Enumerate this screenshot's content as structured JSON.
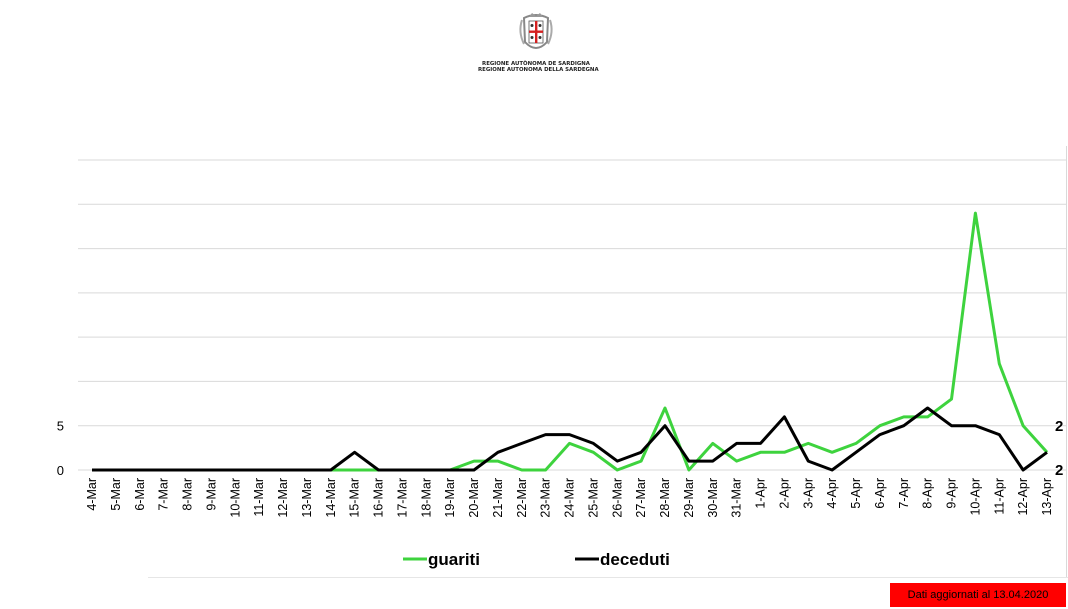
{
  "header": {
    "logo_icon": "sardinia-coat-of-arms",
    "org_line_1": "REGIONE AUTÒNOMA DE SARDIGNA",
    "org_line_2": "REGIONE AUTONOMA DELLA SARDEGNA"
  },
  "chart_data": {
    "type": "line",
    "title": "",
    "xlabel": "",
    "ylabel": "",
    "categories": [
      "4-Mar",
      "5-Mar",
      "6-Mar",
      "7-Mar",
      "8-Mar",
      "9-Mar",
      "10-Mar",
      "11-Mar",
      "12-Mar",
      "13-Mar",
      "14-Mar",
      "15-Mar",
      "16-Mar",
      "17-Mar",
      "18-Mar",
      "19-Mar",
      "20-Mar",
      "21-Mar",
      "22-Mar",
      "23-Mar",
      "24-Mar",
      "25-Mar",
      "26-Mar",
      "27-Mar",
      "28-Mar",
      "29-Mar",
      "30-Mar",
      "31-Mar",
      "1-Apr",
      "2-Apr",
      "3-Apr",
      "4-Apr",
      "5-Apr",
      "6-Apr",
      "7-Apr",
      "8-Apr",
      "9-Apr",
      "10-Apr",
      "11-Apr",
      "12-Apr",
      "13-Apr"
    ],
    "series": [
      {
        "name": "guariti",
        "color": "#3ed33e",
        "values": [
          0,
          0,
          0,
          0,
          0,
          0,
          0,
          0,
          0,
          0,
          0,
          0,
          0,
          0,
          0,
          0,
          1,
          1,
          0,
          0,
          3,
          2,
          0,
          1,
          7,
          0,
          3,
          1,
          2,
          2,
          3,
          2,
          3,
          5,
          6,
          6,
          8,
          29,
          12,
          5,
          2
        ]
      },
      {
        "name": "deceduti",
        "color": "#000000",
        "values": [
          0,
          0,
          0,
          0,
          0,
          0,
          0,
          0,
          0,
          0,
          0,
          2,
          0,
          0,
          0,
          0,
          0,
          2,
          3,
          4,
          4,
          3,
          1,
          2,
          5,
          1,
          1,
          3,
          3,
          6,
          1,
          0,
          2,
          4,
          5,
          7,
          5,
          5,
          4,
          0,
          2
        ]
      }
    ],
    "ylim": [
      0,
      35
    ],
    "ytick_labels": [
      "0",
      "5"
    ],
    "grid": true,
    "end_labels": [
      "2",
      "2"
    ],
    "legend": {
      "position": "bottom",
      "items": [
        "guariti",
        "deceduti"
      ]
    }
  },
  "footer": {
    "update_note": "Dati aggiornati al 13.04.2020",
    "badge_color": "#ff0000"
  }
}
